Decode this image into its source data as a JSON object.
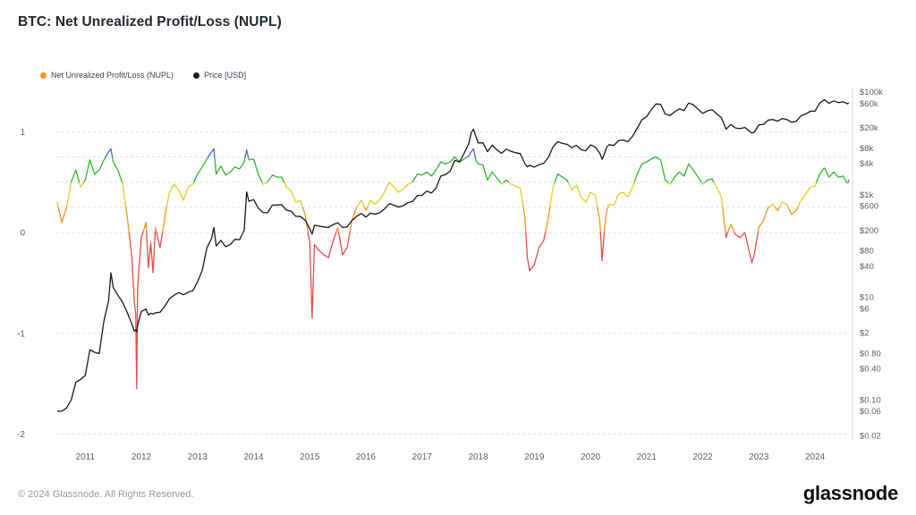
{
  "page": {
    "title": "BTC: Net Unrealized Profit/Loss (NUPL)",
    "footer": "© 2024 Glassnode. All Rights Reserved.",
    "brand": "glassnode"
  },
  "legend": {
    "items": [
      {
        "label": "Net Unrealized Profit/Loss (NUPL)",
        "color": "#f7931a"
      },
      {
        "label": "Price [USD]",
        "color": "#16181d"
      }
    ]
  },
  "chart_data": {
    "type": "line",
    "title": "BTC: Net Unrealized Profit/Loss (NUPL)",
    "x_range": [
      2010.47,
      2024.62
    ],
    "x_ticks": [
      2011,
      2012,
      2013,
      2014,
      2015,
      2016,
      2017,
      2018,
      2019,
      2020,
      2021,
      2022,
      2023,
      2024
    ],
    "left_axis": {
      "range": [
        -2.04,
        1.42
      ],
      "ticks": [
        {
          "v": 1,
          "label": "1"
        },
        {
          "v": 0,
          "label": "0"
        },
        {
          "v": -1,
          "label": "-1"
        },
        {
          "v": -2,
          "label": "-2"
        }
      ],
      "gridlines": [
        1,
        0.75,
        0.5,
        0.25,
        0,
        -1,
        -2
      ]
    },
    "right_axis": {
      "scale": "log",
      "range": [
        0.018,
        113000
      ],
      "ticks": [
        {
          "v": 100000,
          "label": "$100k"
        },
        {
          "v": 60000,
          "label": "$60k"
        },
        {
          "v": 20000,
          "label": "$20k"
        },
        {
          "v": 8000,
          "label": "$8k"
        },
        {
          "v": 4000,
          "label": "$4k"
        },
        {
          "v": 1000,
          "label": "$1k"
        },
        {
          "v": 600,
          "label": "$600"
        },
        {
          "v": 200,
          "label": "$200"
        },
        {
          "v": 80,
          "label": "$80"
        },
        {
          "v": 40,
          "label": "$40"
        },
        {
          "v": 10,
          "label": "$10"
        },
        {
          "v": 6,
          "label": "$6"
        },
        {
          "v": 2,
          "label": "$2"
        },
        {
          "v": 0.8,
          "label": "$0.80"
        },
        {
          "v": 0.4,
          "label": "$0.40"
        },
        {
          "v": 0.1,
          "label": "$0.10"
        },
        {
          "v": 0.06,
          "label": "$0.06"
        },
        {
          "v": 0.02,
          "label": "$0.02"
        }
      ]
    },
    "nupl_bands": [
      {
        "min": 0.75,
        "color": "#4a66d8"
      },
      {
        "min": 0.5,
        "color": "#2fb42f"
      },
      {
        "min": 0.25,
        "color": "#e0cd2a"
      },
      {
        "min": 0,
        "color": "#f7931a"
      },
      {
        "min": -99,
        "color": "#e84a4a"
      }
    ],
    "price_color": "#16181d",
    "x": [
      2010.5,
      2010.583,
      2010.667,
      2010.75,
      2010.833,
      2010.917,
      2011,
      2011.083,
      2011.167,
      2011.25,
      2011.333,
      2011.417,
      2011.458,
      2011.5,
      2011.583,
      2011.667,
      2011.75,
      2011.833,
      2011.875,
      2011.9,
      2011.917,
      2011.933,
      2012,
      2012.083,
      2012.125,
      2012.167,
      2012.208,
      2012.25,
      2012.333,
      2012.417,
      2012.5,
      2012.583,
      2012.667,
      2012.75,
      2012.833,
      2012.917,
      2013,
      2013.083,
      2013.167,
      2013.25,
      2013.292,
      2013.333,
      2013.417,
      2013.5,
      2013.583,
      2013.667,
      2013.75,
      2013.833,
      2013.875,
      2013.917,
      2014,
      2014.083,
      2014.167,
      2014.25,
      2014.333,
      2014.417,
      2014.5,
      2014.583,
      2014.667,
      2014.75,
      2014.833,
      2014.917,
      2015,
      2015.042,
      2015.083,
      2015.167,
      2015.25,
      2015.333,
      2015.417,
      2015.5,
      2015.583,
      2015.667,
      2015.75,
      2015.833,
      2015.917,
      2016,
      2016.083,
      2016.167,
      2016.25,
      2016.333,
      2016.417,
      2016.5,
      2016.583,
      2016.667,
      2016.75,
      2016.833,
      2016.917,
      2017,
      2017.083,
      2017.167,
      2017.25,
      2017.333,
      2017.417,
      2017.5,
      2017.583,
      2017.667,
      2017.75,
      2017.833,
      2017.875,
      2017.917,
      2017.958,
      2018,
      2018.083,
      2018.167,
      2018.25,
      2018.333,
      2018.417,
      2018.5,
      2018.583,
      2018.667,
      2018.75,
      2018.833,
      2018.875,
      2018.917,
      2019,
      2019.083,
      2019.167,
      2019.25,
      2019.333,
      2019.417,
      2019.5,
      2019.583,
      2019.667,
      2019.75,
      2019.833,
      2019.917,
      2020,
      2020.083,
      2020.167,
      2020.208,
      2020.25,
      2020.292,
      2020.333,
      2020.417,
      2020.5,
      2020.583,
      2020.667,
      2020.75,
      2020.833,
      2020.917,
      2021,
      2021.083,
      2021.167,
      2021.25,
      2021.333,
      2021.417,
      2021.5,
      2021.583,
      2021.667,
      2021.75,
      2021.833,
      2021.917,
      2022,
      2022.083,
      2022.167,
      2022.25,
      2022.333,
      2022.417,
      2022.458,
      2022.5,
      2022.583,
      2022.667,
      2022.75,
      2022.833,
      2022.875,
      2022.917,
      2023,
      2023.083,
      2023.167,
      2023.25,
      2023.333,
      2023.417,
      2023.5,
      2023.583,
      2023.667,
      2023.75,
      2023.833,
      2023.917,
      2024,
      2024.083,
      2024.167,
      2024.25,
      2024.333,
      2024.417,
      2024.5,
      2024.583,
      2024.6
    ],
    "series": [
      {
        "name": "Net Unrealized Profit/Loss (NUPL)",
        "axis": "left",
        "values": [
          0.3,
          0.1,
          0.25,
          0.5,
          0.62,
          0.45,
          0.52,
          0.72,
          0.58,
          0.62,
          0.72,
          0.8,
          0.83,
          0.7,
          0.62,
          0.48,
          0.15,
          -0.25,
          -0.7,
          -0.8,
          -1.55,
          -0.55,
          -0.05,
          0.1,
          -0.35,
          -0.1,
          -0.4,
          0.05,
          -0.15,
          0.15,
          0.4,
          0.48,
          0.42,
          0.32,
          0.45,
          0.48,
          0.58,
          0.65,
          0.73,
          0.8,
          0.83,
          0.58,
          0.66,
          0.57,
          0.6,
          0.65,
          0.63,
          0.7,
          0.82,
          0.72,
          0.73,
          0.58,
          0.48,
          0.5,
          0.57,
          0.55,
          0.55,
          0.45,
          0.42,
          0.3,
          0.32,
          0.18,
          -0.1,
          -0.85,
          -0.12,
          -0.18,
          -0.22,
          -0.25,
          -0.08,
          0.05,
          -0.22,
          -0.15,
          0.12,
          0.25,
          0.32,
          0.22,
          0.32,
          0.28,
          0.33,
          0.4,
          0.5,
          0.45,
          0.4,
          0.43,
          0.48,
          0.5,
          0.58,
          0.57,
          0.6,
          0.56,
          0.62,
          0.7,
          0.68,
          0.7,
          0.75,
          0.7,
          0.73,
          0.76,
          0.8,
          0.83,
          0.72,
          0.68,
          0.67,
          0.52,
          0.6,
          0.54,
          0.48,
          0.52,
          0.48,
          0.46,
          0.44,
          0.15,
          -0.25,
          -0.38,
          -0.32,
          -0.15,
          -0.08,
          0.15,
          0.45,
          0.58,
          0.55,
          0.52,
          0.42,
          0.47,
          0.35,
          0.3,
          0.4,
          0.37,
          0.12,
          -0.28,
          0.05,
          0.22,
          0.28,
          0.27,
          0.38,
          0.4,
          0.35,
          0.45,
          0.58,
          0.68,
          0.7,
          0.73,
          0.75,
          0.72,
          0.52,
          0.48,
          0.55,
          0.6,
          0.56,
          0.68,
          0.62,
          0.55,
          0.48,
          0.52,
          0.53,
          0.45,
          0.35,
          -0.05,
          0.02,
          0.08,
          -0.02,
          -0.05,
          0.0,
          -0.2,
          -0.3,
          -0.22,
          0.05,
          0.12,
          0.25,
          0.28,
          0.22,
          0.3,
          0.28,
          0.18,
          0.22,
          0.32,
          0.38,
          0.45,
          0.46,
          0.58,
          0.64,
          0.55,
          0.6,
          0.55,
          0.56,
          0.48,
          0.52
        ]
      },
      {
        "name": "Price [USD]",
        "axis": "right",
        "values": [
          0.06,
          0.06,
          0.07,
          0.1,
          0.22,
          0.25,
          0.3,
          0.95,
          0.85,
          0.8,
          3.5,
          8.5,
          30,
          15.5,
          11,
          8,
          5,
          3,
          2.2,
          2.3,
          2.1,
          2.8,
          5.3,
          5.9,
          4.5,
          4.9,
          4.7,
          5.0,
          5.1,
          6.7,
          9.4,
          11,
          12.4,
          11.2,
          12.6,
          13.5,
          20,
          33,
          93,
          140,
          230,
          100,
          129,
          97,
          106,
          135,
          133,
          204,
          1130,
          746,
          805,
          550,
          450,
          445,
          628,
          630,
          640,
          500,
          480,
          380,
          375,
          320,
          217,
          170,
          254,
          244,
          236,
          230,
          263,
          284,
          230,
          236,
          314,
          377,
          430,
          368,
          437,
          416,
          448,
          531,
          670,
          624,
          575,
          610,
          700,
          742,
          963,
          970,
          1180,
          1080,
          1350,
          2300,
          2480,
          2875,
          4700,
          4360,
          6450,
          9900,
          16000,
          19000,
          13850,
          10200,
          10300,
          6930,
          9240,
          7500,
          6400,
          7730,
          7030,
          6600,
          6340,
          4020,
          3500,
          3740,
          3460,
          3850,
          4100,
          5320,
          8550,
          10800,
          10000,
          9600,
          8300,
          9150,
          7550,
          7190,
          9350,
          8550,
          6440,
          4900,
          6400,
          8600,
          9450,
          9140,
          11350,
          11650,
          10780,
          13800,
          19700,
          29000,
          33100,
          45200,
          58800,
          57700,
          37300,
          35000,
          41500,
          47100,
          43800,
          61300,
          57000,
          46200,
          38500,
          43200,
          45500,
          37700,
          31800,
          19000,
          21000,
          23300,
          20000,
          19400,
          20500,
          17200,
          16000,
          16550,
          23100,
          23500,
          28500,
          29250,
          27200,
          30480,
          29230,
          25930,
          26960,
          34650,
          37700,
          42265,
          42580,
          61200,
          71300,
          60600,
          67500,
          62700,
          64600,
          59000,
          63000
        ]
      }
    ]
  }
}
